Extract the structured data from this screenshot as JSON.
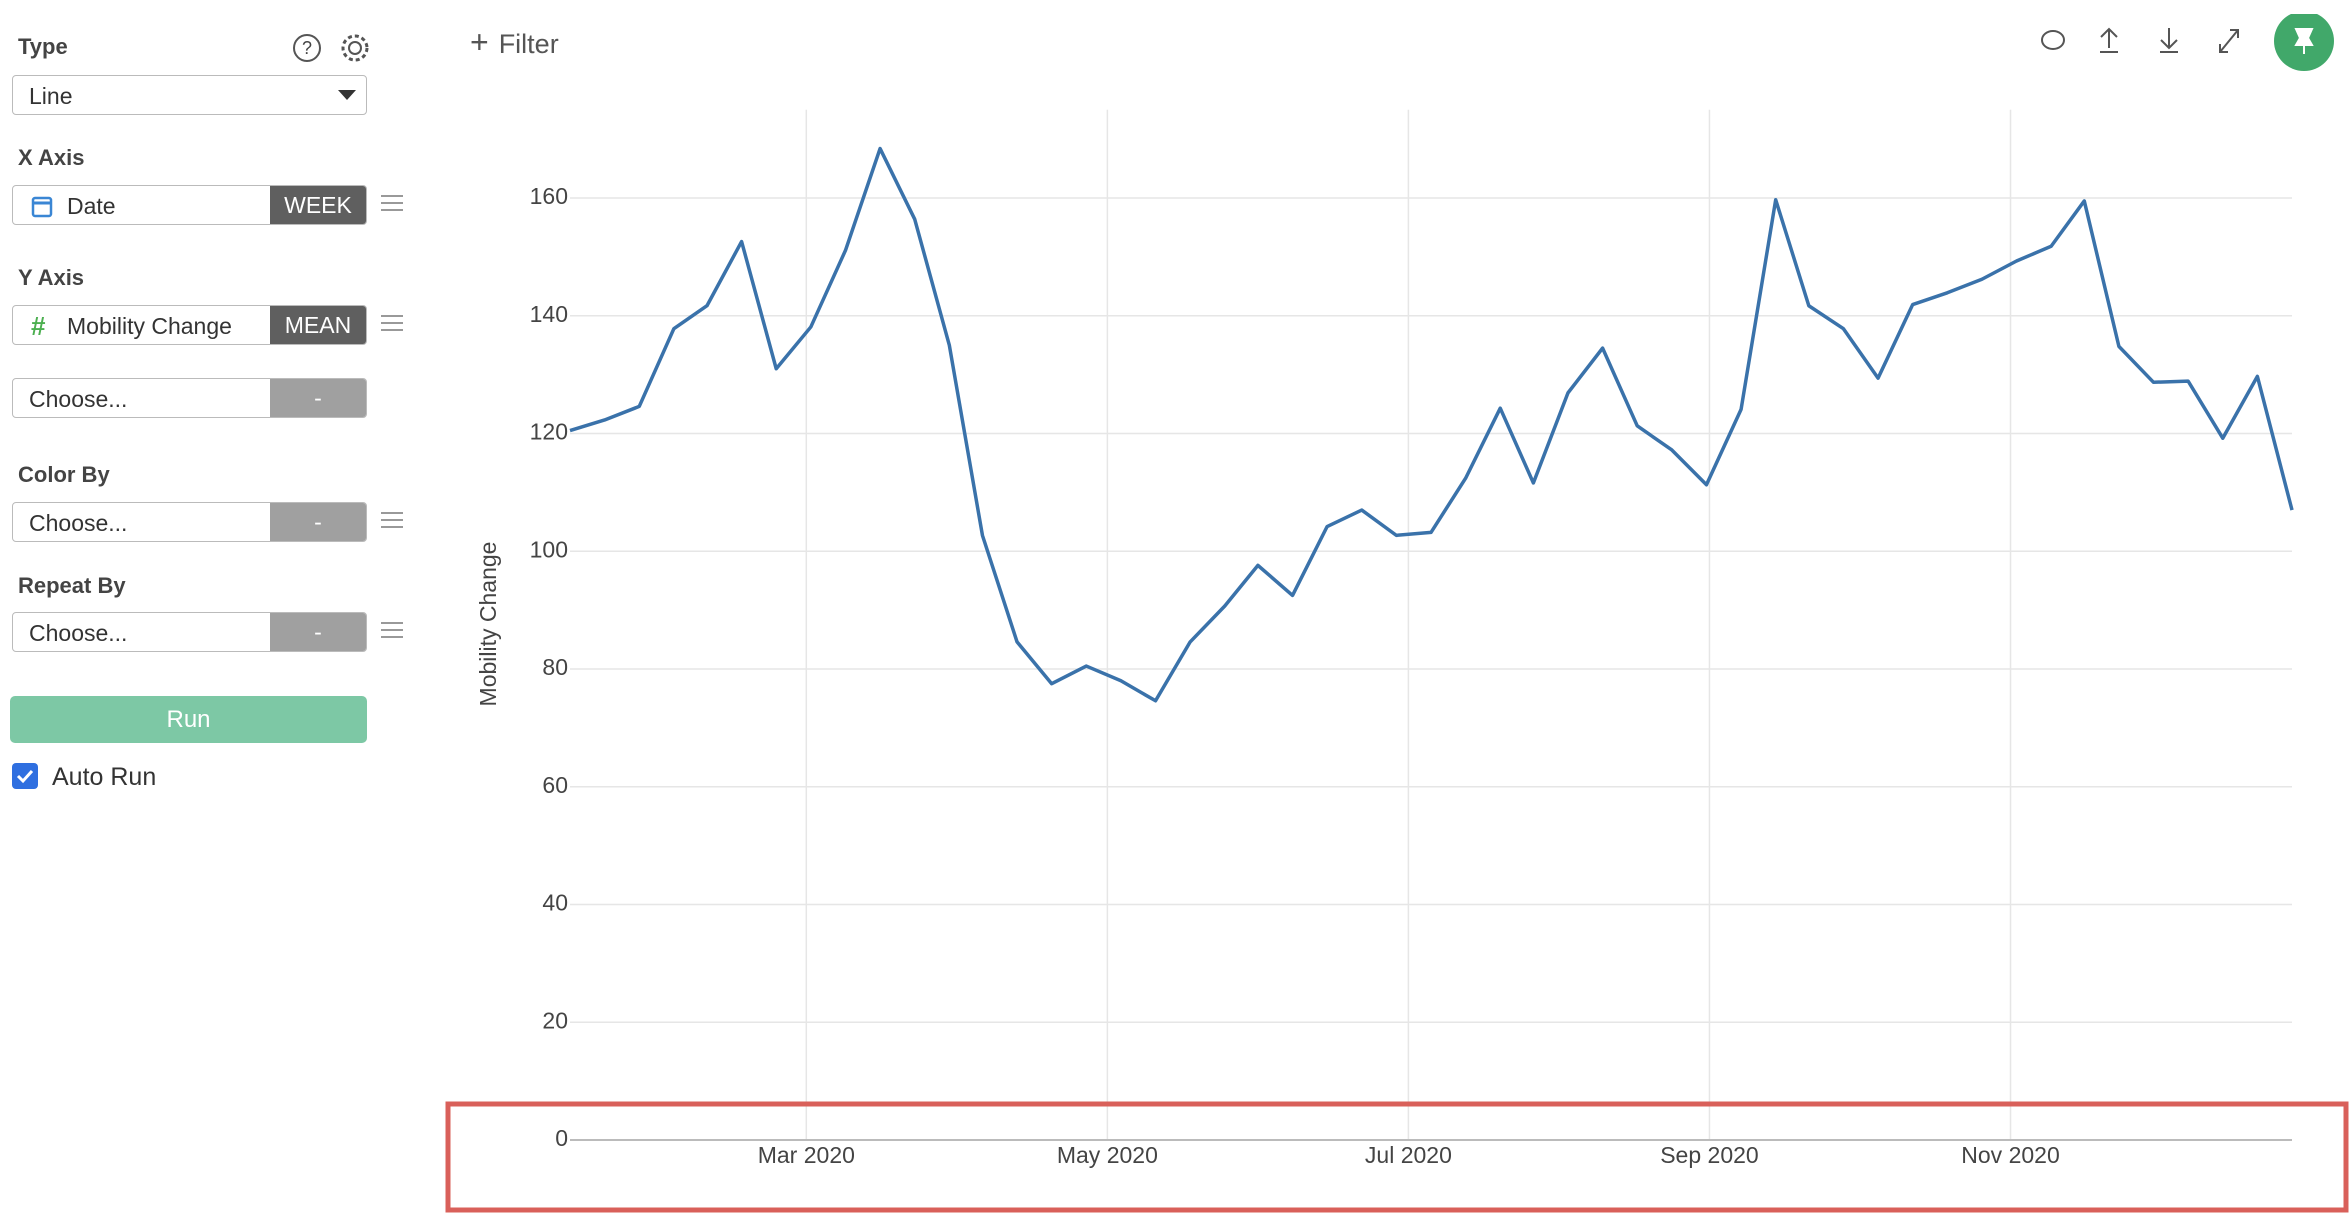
{
  "sidebar": {
    "type_label": "Type",
    "type_value": "Line",
    "x_axis_label": "X Axis",
    "x_axis_field": "Date",
    "x_axis_agg": "WEEK",
    "y_axis_label": "Y Axis",
    "y_axis_field": "Mobility Change",
    "y_axis_agg": "MEAN",
    "y_axis2_field": "Choose...",
    "y_axis2_agg": "-",
    "color_by_label": "Color By",
    "color_by_field": "Choose...",
    "color_by_agg": "-",
    "repeat_by_label": "Repeat By",
    "repeat_by_field": "Choose...",
    "repeat_by_agg": "-",
    "run": "Run",
    "auto_run": "Auto Run"
  },
  "toolbar": {
    "filter": "Filter"
  },
  "chart_data": {
    "type": "line",
    "ylabel": "Mobility Change",
    "x": [
      1.43,
      1.66,
      1.89,
      2.12,
      2.34,
      2.57,
      2.8,
      3.03,
      3.26,
      3.49,
      3.72,
      3.95,
      4.17,
      4.4,
      4.63,
      4.86,
      5.09,
      5.32,
      5.55,
      5.78,
      6.0,
      6.23,
      6.46,
      6.69,
      6.92,
      7.15,
      7.38,
      7.61,
      7.83,
      8.06,
      8.29,
      8.52,
      8.75,
      8.98,
      9.21,
      9.44,
      9.66,
      9.89,
      10.12,
      10.35,
      10.58,
      10.81,
      11.04,
      11.27,
      11.49,
      11.72,
      11.95,
      12.18,
      12.41,
      12.64,
      12.87
    ],
    "series": [
      {
        "name": "Mobility Change",
        "color": "#3a72aa",
        "values": [
          120.5,
          122.3,
          124.6,
          137.8,
          141.7,
          152.6,
          131.0,
          138.1,
          151.1,
          168.4,
          156.4,
          135.0,
          102.7,
          84.6,
          77.5,
          80.5,
          78.0,
          74.6,
          84.6,
          90.7,
          97.6,
          92.5,
          104.2,
          107.0,
          102.7,
          103.2,
          112.4,
          124.3,
          111.6,
          126.9,
          134.5,
          121.3,
          117.2,
          111.3,
          124.1,
          159.7,
          141.7,
          137.8,
          129.4,
          141.9,
          143.9,
          146.2,
          149.3,
          151.8,
          159.5,
          134.8,
          128.7,
          128.9,
          119.2,
          129.7,
          107.0
        ]
      }
    ],
    "xlim": [
      1.43,
      12.87
    ],
    "xticks": [
      {
        "value": 3,
        "label": "Mar 2020"
      },
      {
        "value": 5,
        "label": "May 2020"
      },
      {
        "value": 7,
        "label": "Jul 2020"
      },
      {
        "value": 9,
        "label": "Sep 2020"
      },
      {
        "value": 11,
        "label": "Nov 2020"
      }
    ],
    "ylim": [
      0,
      175
    ],
    "yticks": [
      0,
      20,
      40,
      60,
      80,
      100,
      120,
      140,
      160
    ],
    "grid": true
  }
}
